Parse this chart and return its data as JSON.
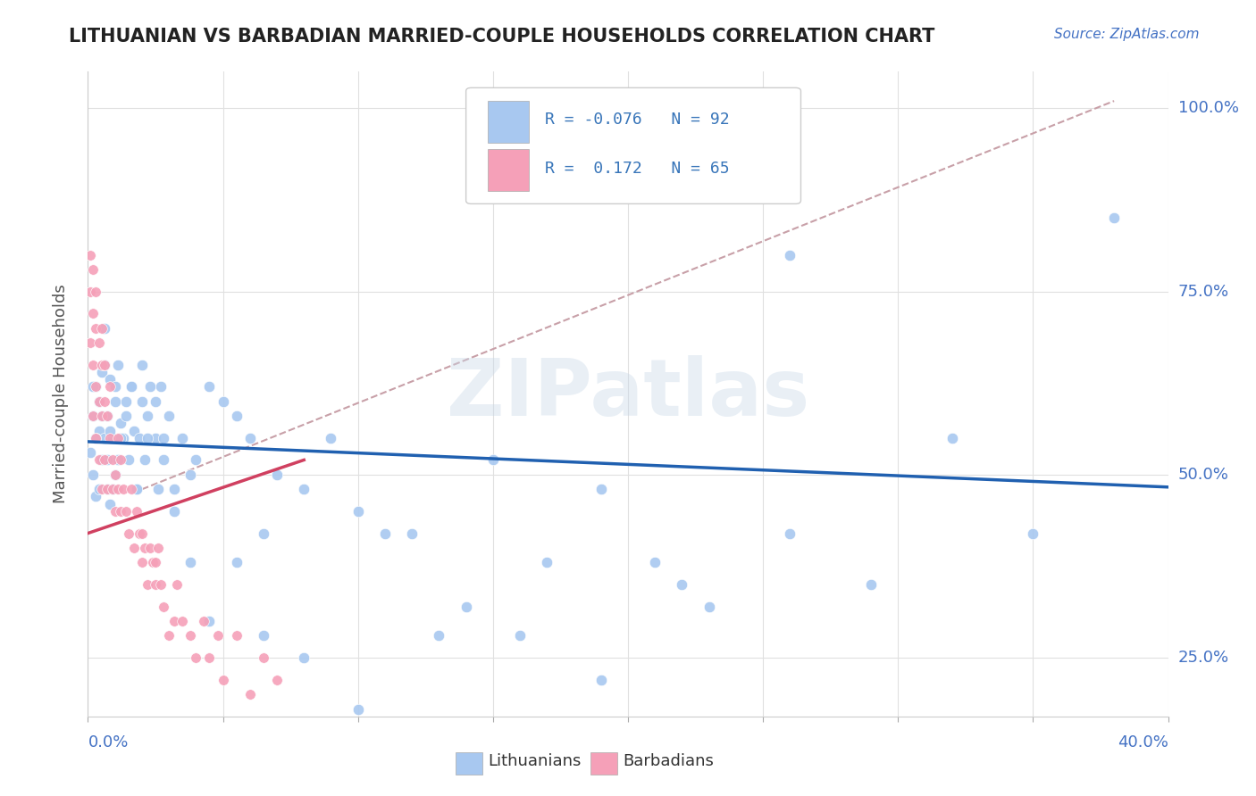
{
  "title": "LITHUANIAN VS BARBADIAN MARRIED-COUPLE HOUSEHOLDS CORRELATION CHART",
  "source_text": "Source: ZipAtlas.com",
  "ylabel": "Married-couple Households",
  "legend_label1": "Lithuanians",
  "legend_label2": "Barbadians",
  "blue_color": "#A8C8F0",
  "pink_color": "#F5A0B8",
  "blue_line_color": "#2060B0",
  "pink_line_color": "#D04060",
  "ref_line_color": "#C8A0A8",
  "title_color": "#222222",
  "axis_label_color": "#4472C4",
  "r_value_color": "#3875B9",
  "legend_text_color": "#333333",
  "xmin": 0.0,
  "xmax": 0.4,
  "ymin": 0.17,
  "ymax": 1.05,
  "blue_trend_x0": 0.0,
  "blue_trend_y0": 0.545,
  "blue_trend_x1": 0.4,
  "blue_trend_y1": 0.483,
  "pink_trend_x0": 0.0,
  "pink_trend_y0": 0.42,
  "pink_trend_x1": 0.08,
  "pink_trend_y1": 0.52,
  "ref_line_x0": 0.02,
  "ref_line_y0": 0.48,
  "ref_line_x1": 0.38,
  "ref_line_y1": 1.01,
  "blue_x": [
    0.001,
    0.002,
    0.002,
    0.003,
    0.003,
    0.004,
    0.004,
    0.005,
    0.005,
    0.006,
    0.006,
    0.007,
    0.007,
    0.008,
    0.008,
    0.009,
    0.01,
    0.01,
    0.011,
    0.011,
    0.012,
    0.013,
    0.014,
    0.015,
    0.016,
    0.017,
    0.018,
    0.019,
    0.02,
    0.021,
    0.022,
    0.023,
    0.025,
    0.026,
    0.027,
    0.028,
    0.03,
    0.032,
    0.035,
    0.038,
    0.04,
    0.045,
    0.05,
    0.055,
    0.06,
    0.065,
    0.07,
    0.08,
    0.09,
    0.1,
    0.11,
    0.13,
    0.15,
    0.17,
    0.19,
    0.21,
    0.23,
    0.26,
    0.29,
    0.32,
    0.35,
    0.38,
    0.002,
    0.003,
    0.004,
    0.005,
    0.006,
    0.007,
    0.008,
    0.009,
    0.01,
    0.012,
    0.014,
    0.016,
    0.018,
    0.02,
    0.022,
    0.025,
    0.028,
    0.032,
    0.038,
    0.045,
    0.055,
    0.065,
    0.08,
    0.1,
    0.12,
    0.14,
    0.16,
    0.19,
    0.22,
    0.26
  ],
  "blue_y": [
    0.53,
    0.58,
    0.5,
    0.62,
    0.47,
    0.56,
    0.48,
    0.64,
    0.52,
    0.7,
    0.55,
    0.58,
    0.48,
    0.63,
    0.46,
    0.55,
    0.6,
    0.5,
    0.65,
    0.52,
    0.57,
    0.55,
    0.6,
    0.52,
    0.62,
    0.56,
    0.48,
    0.55,
    0.6,
    0.52,
    0.58,
    0.62,
    0.55,
    0.48,
    0.62,
    0.52,
    0.58,
    0.48,
    0.55,
    0.5,
    0.52,
    0.62,
    0.6,
    0.58,
    0.55,
    0.42,
    0.5,
    0.48,
    0.55,
    0.45,
    0.42,
    0.28,
    0.52,
    0.38,
    0.48,
    0.38,
    0.32,
    0.42,
    0.35,
    0.55,
    0.42,
    0.85,
    0.62,
    0.55,
    0.6,
    0.58,
    0.65,
    0.52,
    0.56,
    0.48,
    0.62,
    0.55,
    0.58,
    0.62,
    0.48,
    0.65,
    0.55,
    0.6,
    0.55,
    0.45,
    0.38,
    0.3,
    0.38,
    0.28,
    0.25,
    0.18,
    0.42,
    0.32,
    0.28,
    0.22,
    0.35,
    0.8
  ],
  "pink_x": [
    0.001,
    0.001,
    0.001,
    0.002,
    0.002,
    0.002,
    0.002,
    0.003,
    0.003,
    0.003,
    0.003,
    0.004,
    0.004,
    0.004,
    0.005,
    0.005,
    0.005,
    0.005,
    0.006,
    0.006,
    0.006,
    0.007,
    0.007,
    0.008,
    0.008,
    0.009,
    0.009,
    0.01,
    0.01,
    0.011,
    0.011,
    0.012,
    0.012,
    0.013,
    0.014,
    0.015,
    0.016,
    0.017,
    0.018,
    0.019,
    0.02,
    0.021,
    0.022,
    0.023,
    0.024,
    0.025,
    0.026,
    0.027,
    0.028,
    0.03,
    0.032,
    0.033,
    0.035,
    0.038,
    0.04,
    0.043,
    0.045,
    0.048,
    0.05,
    0.055,
    0.06,
    0.065,
    0.07,
    0.02,
    0.025
  ],
  "pink_y": [
    0.75,
    0.68,
    0.8,
    0.72,
    0.65,
    0.78,
    0.58,
    0.7,
    0.62,
    0.75,
    0.55,
    0.6,
    0.68,
    0.52,
    0.65,
    0.58,
    0.7,
    0.48,
    0.6,
    0.52,
    0.65,
    0.58,
    0.48,
    0.55,
    0.62,
    0.48,
    0.52,
    0.5,
    0.45,
    0.55,
    0.48,
    0.45,
    0.52,
    0.48,
    0.45,
    0.42,
    0.48,
    0.4,
    0.45,
    0.42,
    0.38,
    0.4,
    0.35,
    0.4,
    0.38,
    0.35,
    0.4,
    0.35,
    0.32,
    0.28,
    0.3,
    0.35,
    0.3,
    0.28,
    0.25,
    0.3,
    0.25,
    0.28,
    0.22,
    0.28,
    0.2,
    0.25,
    0.22,
    0.42,
    0.38
  ]
}
